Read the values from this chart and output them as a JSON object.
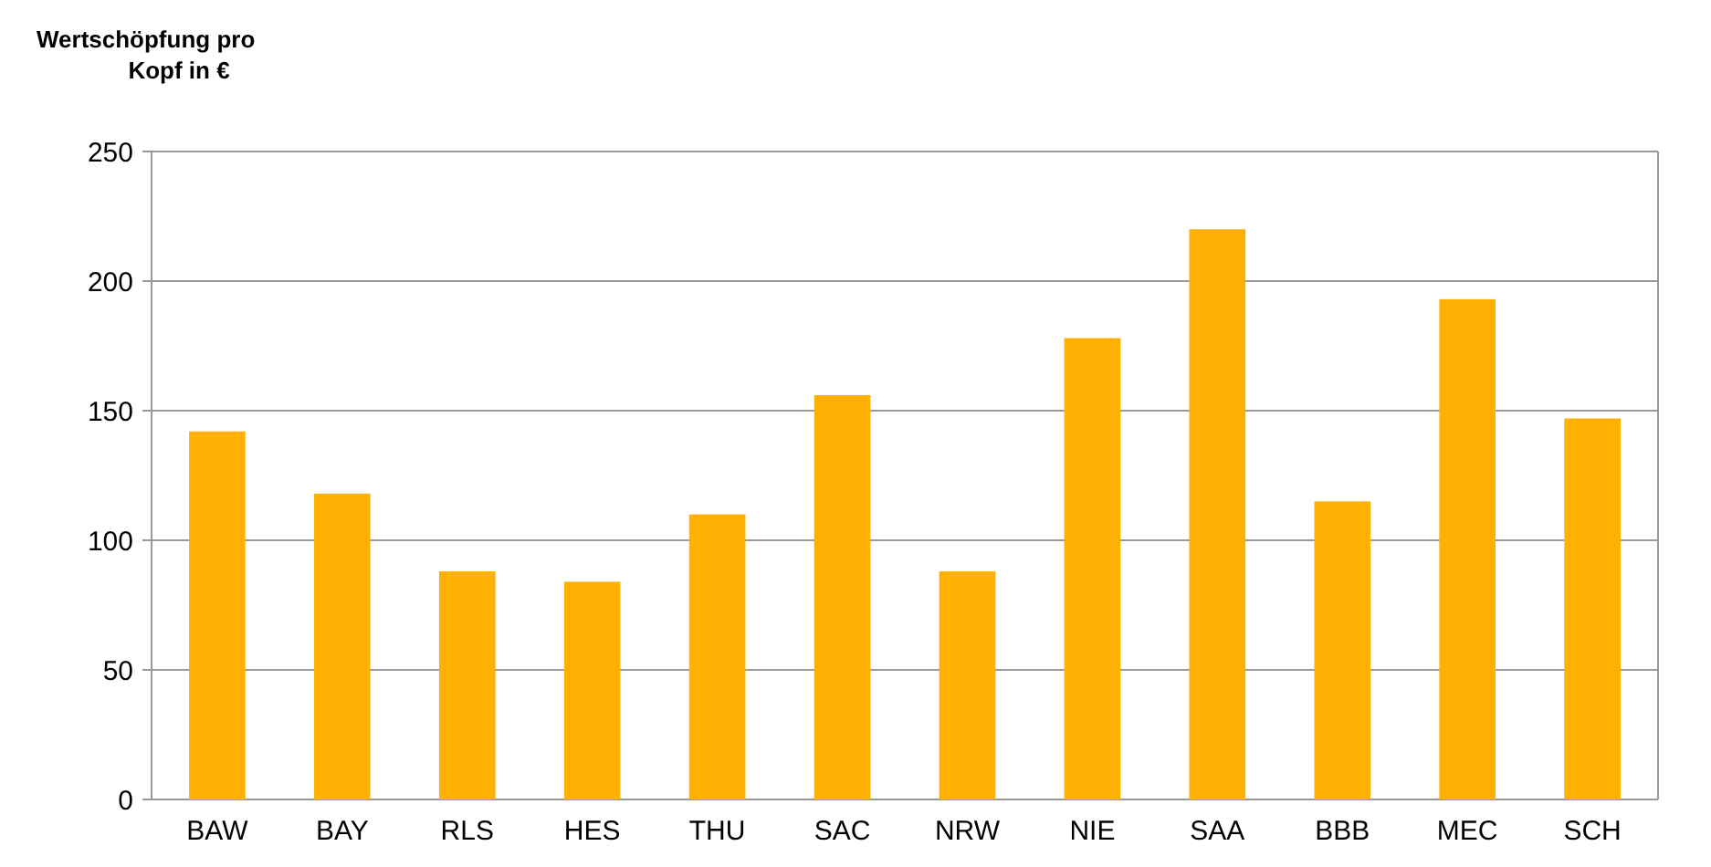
{
  "chart_data": {
    "type": "bar",
    "ylabel": "Wertschöpfung pro Kopf in  €",
    "categories": [
      "BAW",
      "BAY",
      "RLS",
      "HES",
      "THU",
      "SAC",
      "NRW",
      "NIE",
      "SAA",
      "BBB",
      "MEC",
      "SCH"
    ],
    "values": [
      142,
      118,
      88,
      84,
      110,
      156,
      88,
      178,
      220,
      115,
      193,
      147
    ],
    "color": "#ffb000",
    "ylim": [
      0,
      250
    ],
    "yticks": [
      0,
      50,
      100,
      150,
      200,
      250
    ],
    "grid": "y"
  }
}
